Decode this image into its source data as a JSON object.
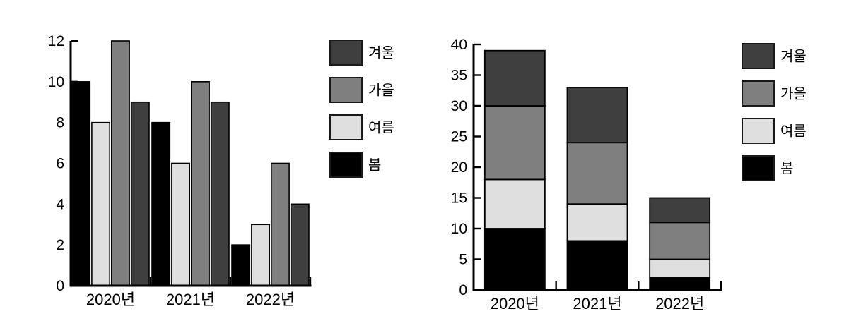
{
  "page": {
    "background": "#ffffff",
    "axis_color": "#000000",
    "text_color": "#000000",
    "swatch_border_color": "#1a1a1a"
  },
  "chart_data": [
    {
      "type": "bar",
      "title": "",
      "xlabel": "",
      "ylabel": "",
      "categories": [
        "2020년",
        "2021년",
        "2022년"
      ],
      "series": [
        {
          "name": "봄",
          "color": "#000000",
          "values": [
            10,
            8,
            2
          ]
        },
        {
          "name": "여름",
          "color": "#dedede",
          "values": [
            8,
            6,
            3
          ]
        },
        {
          "name": "가을",
          "color": "#7f7f7f",
          "values": [
            12,
            10,
            6
          ]
        },
        {
          "name": "겨울",
          "color": "#3f3f3f",
          "values": [
            9,
            9,
            4
          ]
        }
      ],
      "ylim": [
        0,
        12
      ],
      "yticks": [
        0,
        2,
        4,
        6,
        8,
        10,
        12
      ],
      "grid": false,
      "legend": {
        "position": "right",
        "order": [
          "겨울",
          "가을",
          "여름",
          "봄"
        ]
      }
    },
    {
      "type": "stacked-bar",
      "title": "",
      "xlabel": "",
      "ylabel": "",
      "categories": [
        "2020년",
        "2021년",
        "2022년"
      ],
      "stack_order_bottom_to_top": [
        "봄",
        "여름",
        "가을",
        "겨울"
      ],
      "series": [
        {
          "name": "봄",
          "color": "#000000",
          "values": [
            10,
            8,
            2
          ]
        },
        {
          "name": "여름",
          "color": "#dedede",
          "values": [
            8,
            6,
            3
          ]
        },
        {
          "name": "가을",
          "color": "#7f7f7f",
          "values": [
            12,
            10,
            6
          ]
        },
        {
          "name": "겨울",
          "color": "#3f3f3f",
          "values": [
            9,
            9,
            4
          ]
        }
      ],
      "totals": [
        39,
        33,
        15
      ],
      "ylim": [
        0,
        40
      ],
      "yticks": [
        0,
        5,
        10,
        15,
        20,
        25,
        30,
        35,
        40
      ],
      "grid": false,
      "legend": {
        "position": "right",
        "order": [
          "겨울",
          "가을",
          "여름",
          "봄"
        ]
      }
    }
  ]
}
